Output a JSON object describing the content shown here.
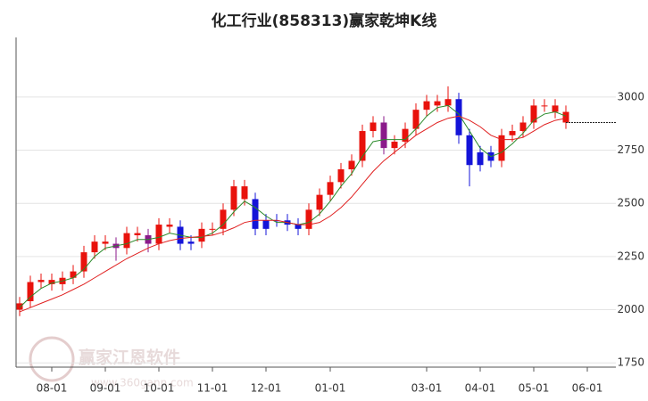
{
  "chart_data": {
    "type": "candlestick",
    "title": "化工行业(858313)赢家乾坤K线",
    "categories": [
      null,
      null,
      null,
      "08-01",
      null,
      null,
      null,
      null,
      "09-01",
      null,
      null,
      null,
      null,
      "10-01",
      null,
      null,
      null,
      null,
      "11-01",
      null,
      null,
      null,
      null,
      "12-01",
      null,
      null,
      null,
      null,
      null,
      "01-01",
      null,
      null,
      null,
      null,
      null,
      null,
      null,
      null,
      "03-01",
      null,
      null,
      null,
      null,
      "04-01",
      null,
      null,
      null,
      null,
      "05-01",
      null,
      null,
      null,
      null,
      "06-01",
      null,
      null
    ],
    "open": [
      2000,
      2040,
      2130,
      2140,
      2120,
      2150,
      2180,
      2270,
      2320,
      2310,
      2290,
      2360,
      2350,
      2310,
      2400,
      2390,
      2310,
      2320,
      2380,
      2380,
      2470,
      2580,
      2520,
      2380,
      2420,
      2420,
      2400,
      2380,
      2470,
      2540,
      2600,
      2660,
      2700,
      2840,
      2880,
      2760,
      2790,
      2850,
      2940,
      2980,
      2960,
      2990,
      2820,
      2680,
      2740,
      2700,
      2820,
      2840,
      2880,
      2960,
      2960,
      2930,
      null,
      null,
      null,
      null
    ],
    "high": [
      2060,
      2160,
      2170,
      2170,
      2180,
      2210,
      2300,
      2350,
      2350,
      2340,
      2390,
      2390,
      2380,
      2430,
      2430,
      2420,
      2350,
      2410,
      2410,
      2500,
      2610,
      2610,
      2550,
      2450,
      2450,
      2450,
      2430,
      2500,
      2570,
      2630,
      2690,
      2730,
      2870,
      2910,
      2910,
      2820,
      2880,
      2970,
      3010,
      3010,
      3050,
      3020,
      2850,
      2770,
      2770,
      2850,
      2870,
      2910,
      2990,
      2990,
      2990,
      2960,
      null,
      null,
      null,
      null
    ],
    "low": [
      1970,
      2010,
      2100,
      2090,
      2090,
      2120,
      2150,
      2240,
      2280,
      2230,
      2260,
      2320,
      2270,
      2280,
      2360,
      2280,
      2280,
      2290,
      2350,
      2350,
      2440,
      2490,
      2350,
      2350,
      2390,
      2370,
      2350,
      2350,
      2440,
      2510,
      2570,
      2630,
      2670,
      2810,
      2730,
      2730,
      2760,
      2820,
      2910,
      2930,
      2930,
      2780,
      2580,
      2650,
      2670,
      2670,
      2790,
      2810,
      2850,
      2930,
      2900,
      2850,
      null,
      null,
      null,
      null
    ],
    "close": [
      2030,
      2130,
      2140,
      2120,
      2150,
      2180,
      2270,
      2320,
      2310,
      2290,
      2360,
      2350,
      2310,
      2400,
      2390,
      2310,
      2320,
      2380,
      2380,
      2470,
      2580,
      2520,
      2380,
      2420,
      2420,
      2400,
      2380,
      2470,
      2540,
      2600,
      2660,
      2700,
      2840,
      2880,
      2760,
      2790,
      2850,
      2940,
      2980,
      2960,
      2990,
      2820,
      2680,
      2740,
      2700,
      2820,
      2840,
      2880,
      2960,
      2960,
      2930,
      2880,
      null,
      null,
      null,
      null
    ],
    "colors": [
      "#e8120c",
      "#e8120c",
      "#e8120c",
      "#e8120c",
      "#e8120c",
      "#e8120c",
      "#e8120c",
      "#e8120c",
      "#e8120c",
      "#8b1a8b",
      "#e8120c",
      "#e8120c",
      "#8b1a8b",
      "#e8120c",
      "#e8120c",
      "#1414d8",
      "#1414d8",
      "#e8120c",
      "#e8120c",
      "#e8120c",
      "#e8120c",
      "#e8120c",
      "#1414d8",
      "#1414d8",
      "#1414d8",
      "#1414d8",
      "#1414d8",
      "#e8120c",
      "#e8120c",
      "#e8120c",
      "#e8120c",
      "#e8120c",
      "#e8120c",
      "#e8120c",
      "#8b1a8b",
      "#e8120c",
      "#e8120c",
      "#e8120c",
      "#e8120c",
      "#e8120c",
      "#e8120c",
      "#1414d8",
      "#1414d8",
      "#1414d8",
      "#1414d8",
      "#e8120c",
      "#e8120c",
      "#e8120c",
      "#e8120c",
      "#e8120c",
      "#e8120c",
      "#e8120c",
      null,
      null,
      null,
      null
    ],
    "overlays": [
      {
        "color": "#2a8a2a",
        "values": [
          2010,
          2060,
          2100,
          2125,
          2135,
          2150,
          2190,
          2250,
          2290,
          2300,
          2310,
          2330,
          2330,
          2340,
          2360,
          2350,
          2340,
          2340,
          2360,
          2400,
          2460,
          2510,
          2480,
          2440,
          2410,
          2410,
          2400,
          2410,
          2450,
          2510,
          2580,
          2640,
          2720,
          2790,
          2800,
          2800,
          2800,
          2850,
          2910,
          2950,
          2960,
          2920,
          2840,
          2760,
          2720,
          2740,
          2780,
          2830,
          2890,
          2920,
          2930,
          2910,
          null,
          null,
          null,
          null
        ]
      },
      {
        "color": "#e02020",
        "values": [
          1990,
          2010,
          2030,
          2050,
          2070,
          2095,
          2120,
          2150,
          2180,
          2210,
          2240,
          2265,
          2290,
          2310,
          2325,
          2335,
          2340,
          2345,
          2350,
          2365,
          2385,
          2410,
          2420,
          2420,
          2420,
          2410,
          2400,
          2400,
          2410,
          2440,
          2480,
          2530,
          2590,
          2650,
          2700,
          2740,
          2780,
          2820,
          2850,
          2880,
          2900,
          2910,
          2890,
          2860,
          2820,
          2800,
          2800,
          2810,
          2840,
          2870,
          2890,
          2900,
          null,
          null,
          null,
          null
        ]
      }
    ],
    "ylim": [
      1730,
      3280
    ],
    "yticks": [
      1750,
      2000,
      2250,
      2500,
      2750,
      3000
    ],
    "grid": true,
    "last_price_line": true,
    "watermark": {
      "text": "赢家江恩软件",
      "url": "www.360gann.com"
    }
  }
}
